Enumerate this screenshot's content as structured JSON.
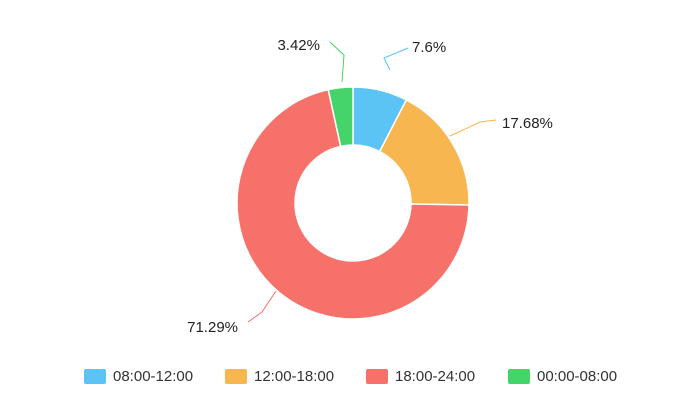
{
  "chart_data": {
    "type": "pie",
    "categories": [
      "08:00-12:00",
      "12:00-18:00",
      "18:00-24:00",
      "00:00-08:00"
    ],
    "values": [
      7.6,
      17.68,
      71.29,
      3.42
    ],
    "labels": [
      "7.6%",
      "17.68%",
      "71.29%",
      "3.42%"
    ],
    "colors": [
      "#5BC4F5",
      "#F8B650",
      "#F6716A",
      "#44D46A"
    ],
    "donut": true,
    "legend": "bottom"
  }
}
